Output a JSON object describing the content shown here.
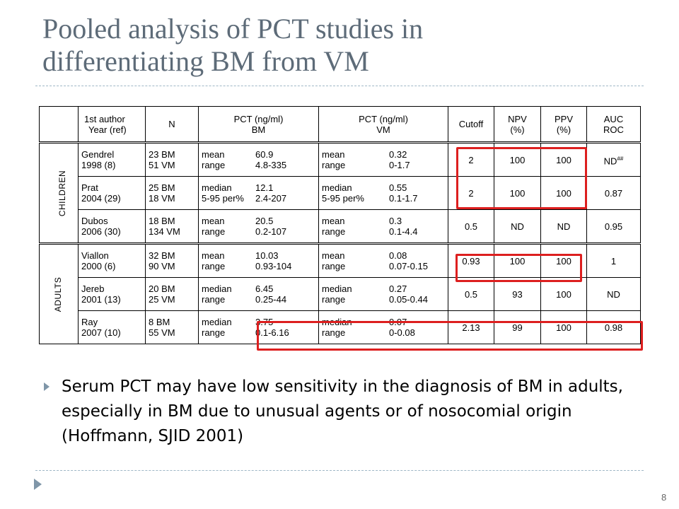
{
  "slide": {
    "title_line1": "Pooled analysis of PCT studies in",
    "title_line2": "differentiating BM from VM",
    "page_number": "8"
  },
  "table": {
    "headers": {
      "author_line1": "1st author",
      "author_line2": "Year (ref)",
      "n": "N",
      "pct_bm_line1": "PCT (ng/ml)",
      "pct_bm_line2": "BM",
      "pct_vm_line1": "PCT (ng/ml)",
      "pct_vm_line2": "VM",
      "cutoff": "Cutoff",
      "npv_line1": "NPV",
      "npv_line2": "(%)",
      "ppv_line1": "PPV",
      "ppv_line2": "(%)",
      "auc_line1": "AUC",
      "auc_line2": "ROC"
    },
    "groups": {
      "children": "CHILDREN",
      "adults": "ADULTS"
    },
    "rows": [
      {
        "author": "Gendrel",
        "year": "1998 (8)",
        "n_bm": "23 BM",
        "n_vm": "51 VM",
        "bm_stat1": "mean",
        "bm_stat2": "range",
        "bm_val1": "60.9",
        "bm_val2": "4.8-335",
        "vm_stat1": "mean",
        "vm_stat2": "range",
        "vm_val1": "0.32",
        "vm_val2": "0-1.7",
        "cutoff": "2",
        "npv": "100",
        "ppv": "100",
        "auc": "ND",
        "auc_sup": "##"
      },
      {
        "author": "Prat",
        "year": "2004 (29)",
        "n_bm": "25 BM",
        "n_vm": "18 VM",
        "bm_stat1": "median",
        "bm_stat2": "5-95 per%",
        "bm_val1": "12.1",
        "bm_val2": "2.4-207",
        "vm_stat1": "median",
        "vm_stat2": "5-95 per%",
        "vm_val1": "0.55",
        "vm_val2": "0.1-1.7",
        "cutoff": "2",
        "npv": "100",
        "ppv": "100",
        "auc": "0.87"
      },
      {
        "author": "Dubos",
        "year": "2006 (30)",
        "n_bm": "18 BM",
        "n_vm": "134 VM",
        "bm_stat1": "mean",
        "bm_stat2": "range",
        "bm_val1": "20.5",
        "bm_val2": "0.2-107",
        "vm_stat1": "mean",
        "vm_stat2": "range",
        "vm_val1": "0.3",
        "vm_val2": "0.1-4.4",
        "cutoff": "0.5",
        "npv": "ND",
        "ppv": "ND",
        "auc": "0.95"
      },
      {
        "author": "Viallon",
        "year": "2000 (6)",
        "n_bm": "32 BM",
        "n_vm": "90 VM",
        "bm_stat1": "mean",
        "bm_stat2": "range",
        "bm_val1": "10.03",
        "bm_val2": "0.93-104",
        "vm_stat1": "mean",
        "vm_stat2": "range",
        "vm_val1": "0.08",
        "vm_val2": "0.07-0.15",
        "cutoff": "0.93",
        "npv": "100",
        "ppv": "100",
        "auc": "1"
      },
      {
        "author": "Jereb",
        "year": "2001 (13)",
        "n_bm": "20 BM",
        "n_vm": "25 VM",
        "bm_stat1": "median",
        "bm_stat2": "range",
        "bm_val1": "6.45",
        "bm_val2": "0.25-44",
        "vm_stat1": "median",
        "vm_stat2": "range",
        "vm_val1": "0.27",
        "vm_val2": "0.05-0.44",
        "cutoff": "0.5",
        "npv": "93",
        "ppv": "100",
        "auc": "ND"
      },
      {
        "author": "Ray",
        "year": "2007 (10)",
        "n_bm": "8 BM",
        "n_vm": "55 VM",
        "bm_stat1": "median",
        "bm_stat2": "range",
        "bm_val1": "3.75",
        "bm_val2": "0.1-6.16",
        "vm_stat1": "median",
        "vm_stat2": "range",
        "vm_val1": "0.07",
        "vm_val2": "0-0.08",
        "cutoff": "2.13",
        "npv": "99",
        "ppv": "100",
        "auc": "0.98"
      }
    ]
  },
  "bullet": {
    "text": "Serum PCT may have low sensitivity in the diagnosis of BM in adults, especially in BM due to unusual agents or of nosocomial origin (Hoffmann, SJID 2001)"
  },
  "colors": {
    "title": "#5d6b78",
    "highlight": "#dd1f1f",
    "accent": "#7f96a8"
  }
}
